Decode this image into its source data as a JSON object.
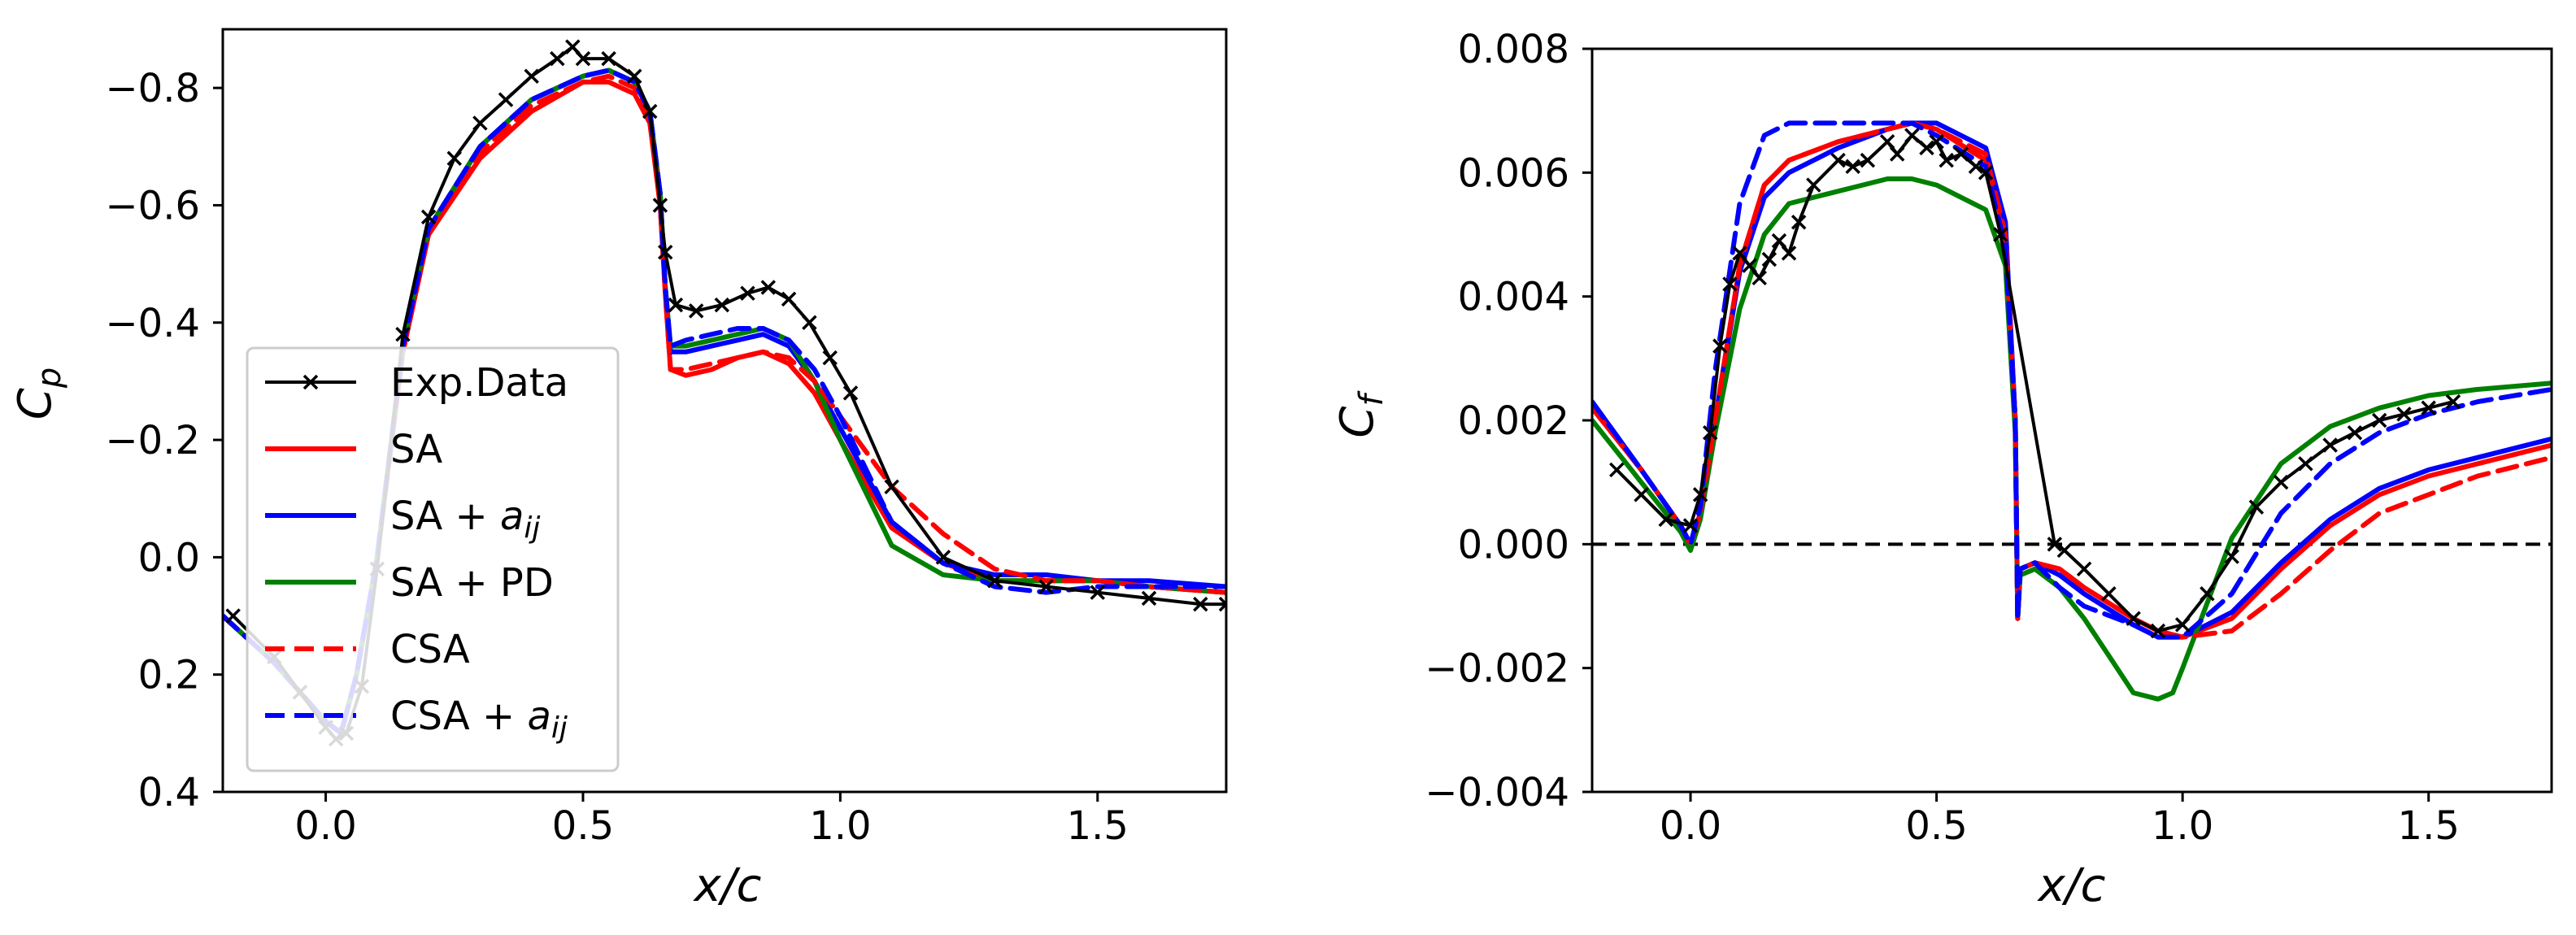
{
  "figure": {
    "panels": 2
  },
  "colors": {
    "exp": "#000000",
    "SA": "#ff0000",
    "SA_aij": "#0000ff",
    "SA_PD": "#008000",
    "CSA": "#ff0000",
    "CSA_aij": "#0000ff",
    "zero_line": "#000000"
  },
  "chart_data": [
    {
      "type": "line",
      "title": "",
      "xlabel": "x/c",
      "ylabel": "C_p",
      "ylabel_base": "C",
      "ylabel_sub": "p",
      "xlim": [
        -0.2,
        1.75
      ],
      "ylim": [
        -0.9,
        0.4
      ],
      "y_inverted": true,
      "xticks": [
        0.0,
        0.5,
        1.0,
        1.5
      ],
      "xtick_labels": [
        "0.0",
        "0.5",
        "1.0",
        "1.5"
      ],
      "yticks": [
        -0.8,
        -0.6,
        -0.4,
        -0.2,
        0.0,
        0.2,
        0.4
      ],
      "ytick_labels": [
        "−0.8",
        "−0.6",
        "−0.4",
        "−0.2",
        "0.0",
        "0.2",
        "0.4"
      ],
      "legend": {
        "position": "lower-left",
        "entries": [
          {
            "label": "Exp.Data",
            "series": "exp"
          },
          {
            "label": "SA",
            "series": "SA"
          },
          {
            "label_base": "SA + ",
            "label_sym": "a",
            "label_sub": "ij",
            "series": "SA_aij"
          },
          {
            "label": "SA + PD",
            "series": "SA_PD"
          },
          {
            "label": "CSA",
            "series": "CSA"
          },
          {
            "label_base": "CSA + ",
            "label_sym": "a",
            "label_sub": "ij",
            "series": "CSA_aij"
          }
        ]
      },
      "series": [
        {
          "name": "SA",
          "style": "solid",
          "x": [
            -0.2,
            -0.1,
            0.0,
            0.03,
            0.06,
            0.1,
            0.15,
            0.2,
            0.3,
            0.4,
            0.5,
            0.55,
            0.6,
            0.63,
            0.65,
            0.66,
            0.67,
            0.7,
            0.75,
            0.8,
            0.85,
            0.9,
            0.95,
            1.0,
            1.1,
            1.2,
            1.3,
            1.4,
            1.5,
            1.6,
            1.75
          ],
          "y": [
            0.1,
            0.18,
            0.28,
            0.3,
            0.2,
            0.0,
            -0.35,
            -0.55,
            -0.68,
            -0.76,
            -0.81,
            -0.81,
            -0.79,
            -0.74,
            -0.6,
            -0.45,
            -0.32,
            -0.31,
            -0.32,
            -0.34,
            -0.35,
            -0.33,
            -0.28,
            -0.2,
            -0.05,
            0.01,
            0.04,
            0.04,
            0.04,
            0.05,
            0.06
          ]
        },
        {
          "name": "SA + aij",
          "style": "solid",
          "x": [
            -0.2,
            -0.1,
            0.0,
            0.03,
            0.06,
            0.1,
            0.15,
            0.2,
            0.3,
            0.4,
            0.5,
            0.55,
            0.6,
            0.63,
            0.65,
            0.66,
            0.67,
            0.7,
            0.75,
            0.8,
            0.85,
            0.9,
            0.95,
            1.0,
            1.1,
            1.2,
            1.3,
            1.4,
            1.5,
            1.6,
            1.75
          ],
          "y": [
            0.1,
            0.18,
            0.28,
            0.3,
            0.2,
            0.0,
            -0.36,
            -0.56,
            -0.7,
            -0.78,
            -0.82,
            -0.83,
            -0.81,
            -0.76,
            -0.62,
            -0.46,
            -0.35,
            -0.35,
            -0.36,
            -0.37,
            -0.38,
            -0.36,
            -0.3,
            -0.22,
            -0.06,
            0.01,
            0.03,
            0.03,
            0.04,
            0.04,
            0.05
          ]
        },
        {
          "name": "SA + PD",
          "style": "solid",
          "x": [
            -0.2,
            -0.1,
            0.0,
            0.03,
            0.06,
            0.1,
            0.15,
            0.2,
            0.3,
            0.4,
            0.5,
            0.55,
            0.6,
            0.63,
            0.65,
            0.66,
            0.67,
            0.7,
            0.75,
            0.8,
            0.85,
            0.9,
            0.95,
            1.0,
            1.1,
            1.2,
            1.3,
            1.4,
            1.5,
            1.6,
            1.75
          ],
          "y": [
            0.1,
            0.18,
            0.28,
            0.3,
            0.2,
            0.0,
            -0.36,
            -0.56,
            -0.7,
            -0.78,
            -0.82,
            -0.83,
            -0.81,
            -0.76,
            -0.62,
            -0.46,
            -0.36,
            -0.36,
            -0.37,
            -0.38,
            -0.39,
            -0.37,
            -0.3,
            -0.2,
            -0.02,
            0.03,
            0.04,
            0.04,
            0.04,
            0.05,
            0.06
          ]
        },
        {
          "name": "CSA",
          "style": "dashed",
          "x": [
            -0.2,
            -0.1,
            0.0,
            0.03,
            0.06,
            0.1,
            0.15,
            0.2,
            0.3,
            0.4,
            0.5,
            0.55,
            0.6,
            0.63,
            0.65,
            0.66,
            0.67,
            0.7,
            0.75,
            0.8,
            0.85,
            0.9,
            0.95,
            1.0,
            1.1,
            1.2,
            1.3,
            1.4,
            1.5,
            1.6,
            1.75
          ],
          "y": [
            0.1,
            0.18,
            0.28,
            0.3,
            0.2,
            0.0,
            -0.35,
            -0.55,
            -0.69,
            -0.77,
            -0.81,
            -0.82,
            -0.8,
            -0.75,
            -0.6,
            -0.45,
            -0.32,
            -0.32,
            -0.33,
            -0.34,
            -0.35,
            -0.34,
            -0.3,
            -0.24,
            -0.12,
            -0.04,
            0.02,
            0.04,
            0.04,
            0.05,
            0.06
          ]
        },
        {
          "name": "CSA + aij",
          "style": "dashed",
          "x": [
            -0.2,
            -0.1,
            0.0,
            0.03,
            0.06,
            0.1,
            0.15,
            0.2,
            0.3,
            0.4,
            0.5,
            0.55,
            0.6,
            0.63,
            0.65,
            0.66,
            0.67,
            0.7,
            0.75,
            0.8,
            0.85,
            0.9,
            0.95,
            1.0,
            1.1,
            1.2,
            1.3,
            1.4,
            1.5,
            1.6,
            1.75
          ],
          "y": [
            0.1,
            0.18,
            0.28,
            0.3,
            0.2,
            0.0,
            -0.36,
            -0.56,
            -0.7,
            -0.78,
            -0.82,
            -0.83,
            -0.81,
            -0.76,
            -0.62,
            -0.46,
            -0.36,
            -0.37,
            -0.38,
            -0.39,
            -0.39,
            -0.37,
            -0.32,
            -0.24,
            -0.06,
            0.01,
            0.05,
            0.06,
            0.05,
            0.05,
            0.05
          ]
        },
        {
          "name": "Exp.Data",
          "style": "markers",
          "x": [
            -0.18,
            -0.1,
            -0.05,
            0.0,
            0.02,
            0.04,
            0.07,
            0.1,
            0.15,
            0.2,
            0.25,
            0.3,
            0.35,
            0.4,
            0.45,
            0.48,
            0.5,
            0.55,
            0.6,
            0.63,
            0.65,
            0.66,
            0.68,
            0.72,
            0.77,
            0.82,
            0.86,
            0.9,
            0.94,
            0.98,
            1.02,
            1.1,
            1.2,
            1.3,
            1.4,
            1.5,
            1.6,
            1.7,
            1.75
          ],
          "y": [
            0.1,
            0.17,
            0.23,
            0.29,
            0.31,
            0.3,
            0.22,
            0.02,
            -0.38,
            -0.58,
            -0.68,
            -0.74,
            -0.78,
            -0.82,
            -0.85,
            -0.87,
            -0.85,
            -0.85,
            -0.82,
            -0.76,
            -0.6,
            -0.52,
            -0.43,
            -0.42,
            -0.43,
            -0.45,
            -0.46,
            -0.44,
            -0.4,
            -0.34,
            -0.28,
            -0.12,
            0.0,
            0.04,
            0.05,
            0.06,
            0.07,
            0.08,
            0.08
          ]
        }
      ]
    },
    {
      "type": "line",
      "title": "",
      "xlabel": "x/c",
      "ylabel": "C_f",
      "ylabel_base": "C",
      "ylabel_sub": "f",
      "xlim": [
        -0.2,
        1.75
      ],
      "ylim": [
        -0.004,
        0.008
      ],
      "y_inverted": false,
      "xticks": [
        0.0,
        0.5,
        1.0,
        1.5
      ],
      "xtick_labels": [
        "0.0",
        "0.5",
        "1.0",
        "1.5"
      ],
      "yticks": [
        -0.004,
        -0.002,
        0.0,
        0.002,
        0.004,
        0.006,
        0.008
      ],
      "ytick_labels": [
        "−0.004",
        "−0.002",
        "0.000",
        "0.002",
        "0.004",
        "0.006",
        "0.008"
      ],
      "reference_line": {
        "y": 0.0,
        "style": "dashed"
      },
      "series": [
        {
          "name": "SA",
          "style": "solid",
          "x": [
            -0.2,
            -0.1,
            -0.02,
            0.0,
            0.02,
            0.05,
            0.1,
            0.15,
            0.2,
            0.3,
            0.4,
            0.45,
            0.5,
            0.6,
            0.64,
            0.66,
            0.665,
            0.67,
            0.7,
            0.75,
            0.8,
            0.9,
            0.95,
            1.0,
            1.1,
            1.2,
            1.3,
            1.4,
            1.5,
            1.6,
            1.75
          ],
          "y": [
            0.0022,
            0.0012,
            0.0003,
            0.0,
            0.0005,
            0.002,
            0.0045,
            0.0058,
            0.0062,
            0.0065,
            0.0067,
            0.0068,
            0.0067,
            0.0062,
            0.005,
            0.002,
            -0.0012,
            -0.0004,
            -0.0003,
            -0.0004,
            -0.0007,
            -0.0012,
            -0.0014,
            -0.0015,
            -0.0012,
            -0.0004,
            0.0003,
            0.0008,
            0.0011,
            0.0013,
            0.0016
          ]
        },
        {
          "name": "SA + aij",
          "style": "solid",
          "x": [
            -0.2,
            -0.1,
            -0.02,
            0.0,
            0.02,
            0.05,
            0.1,
            0.15,
            0.2,
            0.3,
            0.4,
            0.45,
            0.5,
            0.6,
            0.64,
            0.66,
            0.665,
            0.67,
            0.7,
            0.75,
            0.8,
            0.9,
            0.95,
            1.0,
            1.1,
            1.2,
            1.3,
            1.4,
            1.5,
            1.6,
            1.75
          ],
          "y": [
            0.0023,
            0.0012,
            0.0003,
            0.0,
            0.0005,
            0.002,
            0.0044,
            0.0056,
            0.006,
            0.0064,
            0.0067,
            0.0068,
            0.0068,
            0.0064,
            0.0052,
            0.002,
            -0.0012,
            -0.0004,
            -0.0003,
            -0.0005,
            -0.0008,
            -0.0013,
            -0.0015,
            -0.0015,
            -0.0011,
            -0.0003,
            0.0004,
            0.0009,
            0.0012,
            0.0014,
            0.0017
          ]
        },
        {
          "name": "SA + PD",
          "style": "solid",
          "x": [
            -0.2,
            -0.1,
            -0.02,
            0.0,
            0.02,
            0.05,
            0.1,
            0.15,
            0.2,
            0.3,
            0.4,
            0.45,
            0.5,
            0.6,
            0.64,
            0.66,
            0.665,
            0.67,
            0.7,
            0.75,
            0.8,
            0.85,
            0.9,
            0.95,
            0.98,
            1.0,
            1.1,
            1.2,
            1.3,
            1.4,
            1.5,
            1.6,
            1.75
          ],
          "y": [
            0.002,
            0.001,
            0.0002,
            -0.0001,
            0.0004,
            0.0018,
            0.0038,
            0.005,
            0.0055,
            0.0057,
            0.0059,
            0.0059,
            0.0058,
            0.0054,
            0.0045,
            0.0018,
            -0.0012,
            -0.0005,
            -0.0004,
            -0.0007,
            -0.0012,
            -0.0018,
            -0.0024,
            -0.0025,
            -0.0024,
            -0.002,
            0.0001,
            0.0013,
            0.0019,
            0.0022,
            0.0024,
            0.0025,
            0.0026
          ]
        },
        {
          "name": "CSA",
          "style": "dashed",
          "x": [
            -0.2,
            -0.1,
            -0.02,
            0.0,
            0.02,
            0.05,
            0.1,
            0.15,
            0.2,
            0.3,
            0.4,
            0.45,
            0.5,
            0.6,
            0.64,
            0.66,
            0.665,
            0.67,
            0.7,
            0.75,
            0.8,
            0.9,
            0.95,
            1.0,
            1.1,
            1.2,
            1.3,
            1.4,
            1.5,
            1.6,
            1.75
          ],
          "y": [
            0.0022,
            0.0012,
            0.0003,
            0.0,
            0.0005,
            0.002,
            0.0045,
            0.0058,
            0.0062,
            0.0065,
            0.0067,
            0.0068,
            0.0067,
            0.0063,
            0.005,
            0.002,
            -0.0012,
            -0.0004,
            -0.0003,
            -0.0004,
            -0.0007,
            -0.0012,
            -0.0014,
            -0.0015,
            -0.0014,
            -0.0008,
            -0.0001,
            0.0005,
            0.0008,
            0.0011,
            0.0014
          ]
        },
        {
          "name": "CSA + aij",
          "style": "dashed",
          "x": [
            -0.2,
            -0.1,
            -0.02,
            0.0,
            0.02,
            0.05,
            0.1,
            0.15,
            0.2,
            0.3,
            0.4,
            0.45,
            0.5,
            0.6,
            0.64,
            0.66,
            0.665,
            0.67,
            0.7,
            0.75,
            0.8,
            0.9,
            0.95,
            1.0,
            1.1,
            1.2,
            1.3,
            1.4,
            1.5,
            1.6,
            1.75
          ],
          "y": [
            0.0023,
            0.0012,
            0.0003,
            0.0,
            0.0006,
            0.0028,
            0.0055,
            0.0066,
            0.0068,
            0.0068,
            0.0068,
            0.0068,
            0.0066,
            0.0061,
            0.0048,
            0.002,
            -0.0012,
            -0.0004,
            -0.0003,
            -0.0007,
            -0.001,
            -0.0013,
            -0.0015,
            -0.0015,
            -0.0008,
            0.0005,
            0.0013,
            0.0018,
            0.0021,
            0.0023,
            0.0025
          ]
        },
        {
          "name": "Exp.Data",
          "style": "markers",
          "x": [
            -0.15,
            -0.1,
            -0.05,
            0.0,
            0.02,
            0.04,
            0.06,
            0.08,
            0.1,
            0.12,
            0.14,
            0.16,
            0.18,
            0.2,
            0.22,
            0.25,
            0.3,
            0.33,
            0.36,
            0.4,
            0.42,
            0.45,
            0.48,
            0.5,
            0.52,
            0.55,
            0.58,
            0.6,
            0.63,
            0.74,
            0.76,
            0.8,
            0.85,
            0.9,
            0.95,
            1.0,
            1.05,
            1.1,
            1.15,
            1.2,
            1.25,
            1.3,
            1.35,
            1.4,
            1.45,
            1.5,
            1.55
          ],
          "y": [
            0.0012,
            0.0008,
            0.0004,
            0.0003,
            0.0008,
            0.0018,
            0.0032,
            0.0042,
            0.0047,
            0.0045,
            0.0043,
            0.0046,
            0.0049,
            0.0047,
            0.0052,
            0.0058,
            0.0062,
            0.0061,
            0.0062,
            0.0065,
            0.0063,
            0.0066,
            0.0064,
            0.0065,
            0.0062,
            0.0063,
            0.0061,
            0.006,
            0.005,
            0.0,
            -0.0001,
            -0.0004,
            -0.0008,
            -0.0012,
            -0.0014,
            -0.0013,
            -0.0008,
            -0.0002,
            0.0006,
            0.001,
            0.0013,
            0.0016,
            0.0018,
            0.002,
            0.0021,
            0.0022,
            0.0023
          ]
        }
      ]
    }
  ]
}
